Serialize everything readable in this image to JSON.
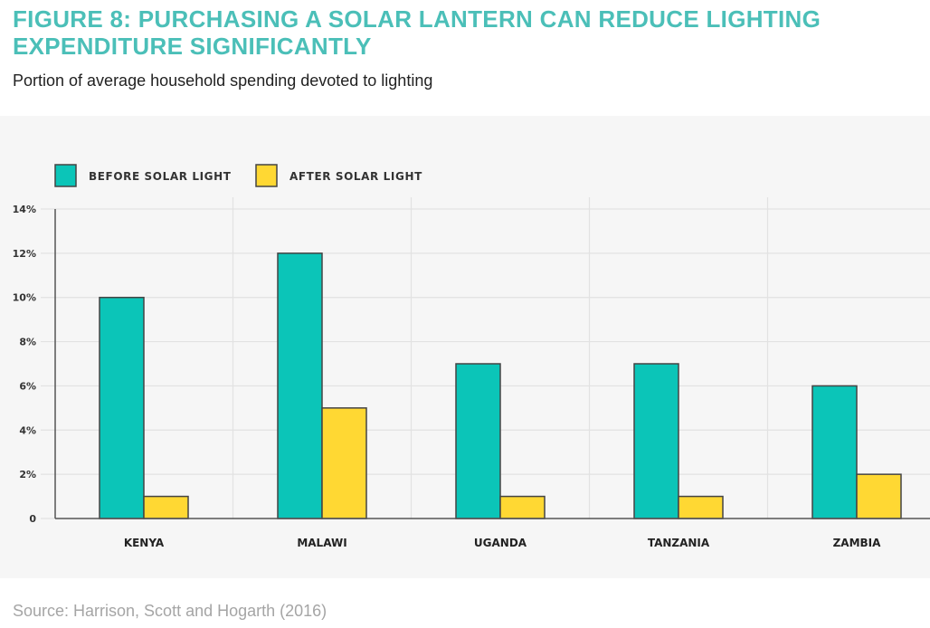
{
  "header": {
    "title": "FIGURE 8: PURCHASING A SOLAR LANTERN CAN REDUCE LIGHTING EXPENDITURE SIGNIFICANTLY",
    "subtitle": "Portion of average household spending devoted to lighting"
  },
  "footer": {
    "source": "Source: Harrison, Scott and Hogarth (2016)"
  },
  "colors": {
    "title": "#4bbfb8",
    "before": "#0bc5b8",
    "after": "#ffd833",
    "outline": "#444444",
    "panel": "#f6f6f6",
    "grid": "#e2e2e2"
  },
  "chart_data": {
    "type": "bar",
    "title": "FIGURE 8: PURCHASING A SOLAR LANTERN CAN REDUCE LIGHTING EXPENDITURE SIGNIFICANTLY",
    "subtitle": "Portion of average household spending devoted to lighting",
    "xlabel": "",
    "ylabel": "",
    "categories": [
      "KENYA",
      "MALAWI",
      "UGANDA",
      "TANZANIA",
      "ZAMBIA"
    ],
    "series": [
      {
        "name": "BEFORE SOLAR LIGHT",
        "values": [
          10,
          12,
          7,
          7,
          6
        ]
      },
      {
        "name": "AFTER SOLAR LIGHT",
        "values": [
          1,
          5,
          1,
          1,
          2
        ]
      }
    ],
    "units": "%",
    "ylim": [
      0,
      14
    ],
    "yticks": [
      0,
      2,
      4,
      6,
      8,
      10,
      12,
      14
    ],
    "ytick_labels": [
      "0",
      "2%",
      "4%",
      "6%",
      "8%",
      "10%",
      "12%",
      "14%"
    ],
    "grid": true,
    "legend_position": "top-left"
  }
}
